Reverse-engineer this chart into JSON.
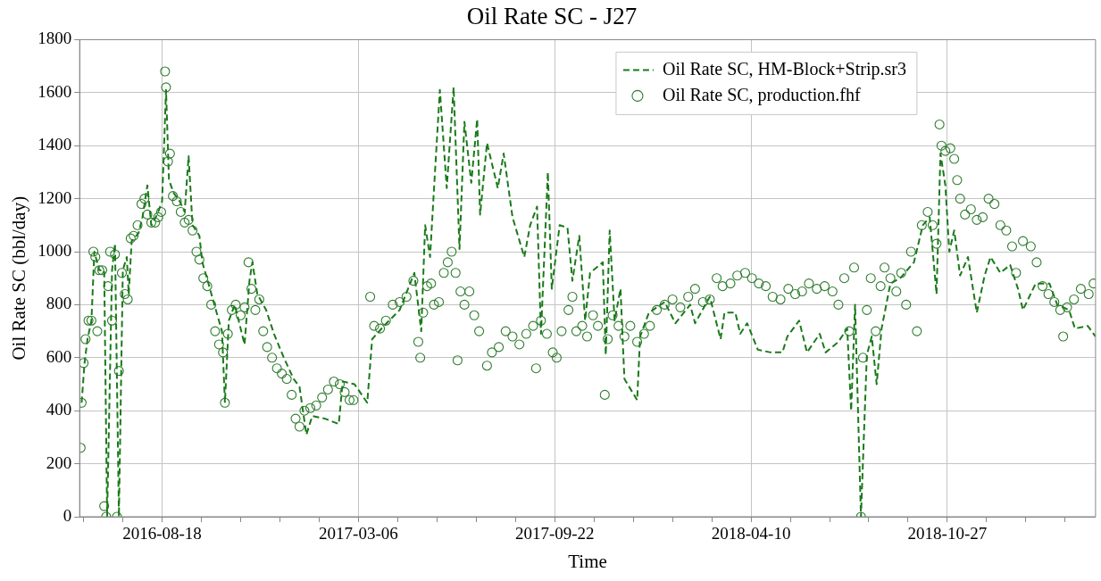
{
  "chart_data": {
    "type": "line",
    "title": "Oil Rate SC - J27",
    "xlabel": "Time",
    "ylabel": "Oil Rate SC (bbl/day)",
    "xlim": [
      "2016-05-26",
      "2019-03-27"
    ],
    "xticks": [
      {
        "value": "2016-05-30",
        "label": null
      },
      {
        "value": "2016-07-09",
        "label": null
      },
      "2016-08-18",
      {
        "value": "2016-09-27",
        "label": null
      },
      {
        "value": "2016-11-06",
        "label": null
      },
      {
        "value": "2016-12-16",
        "label": null
      },
      {
        "value": "2017-01-25",
        "label": null
      },
      "2017-03-06",
      {
        "value": "2017-04-15",
        "label": null
      },
      {
        "value": "2017-05-25",
        "label": null
      },
      {
        "value": "2017-07-04",
        "label": null
      },
      {
        "value": "2017-08-13",
        "label": null
      },
      "2017-09-22",
      {
        "value": "2017-11-01",
        "label": null
      },
      {
        "value": "2017-12-11",
        "label": null
      },
      {
        "value": "2018-01-20",
        "label": null
      },
      {
        "value": "2018-03-01",
        "label": null
      },
      "2018-04-10",
      {
        "value": "2018-05-20",
        "label": null
      },
      {
        "value": "2018-06-29",
        "label": null
      },
      {
        "value": "2018-08-08",
        "label": null
      },
      {
        "value": "2018-09-17",
        "label": null
      },
      "2018-10-27",
      {
        "value": "2018-12-06",
        "label": null
      },
      {
        "value": "2019-01-15",
        "label": null
      },
      {
        "value": "2019-02-24",
        "label": null
      }
    ],
    "ylim": [
      0,
      1800
    ],
    "yticks": [
      0,
      200,
      400,
      600,
      800,
      1000,
      1200,
      1400,
      1600,
      1800
    ],
    "grid": true,
    "legend": "top right",
    "series": [
      {
        "name": "Oil Rate SC, HM-Block+Strip.sr3",
        "type": "line",
        "line_style": "dashed",
        "marker": "none",
        "color": "#1a7a1a",
        "x": [
          "2016-05-28",
          "2016-05-31",
          "2016-06-03",
          "2016-06-07",
          "2016-06-10",
          "2016-06-15",
          "2016-06-20",
          "2016-06-23",
          "2016-06-28",
          "2016-07-01",
          "2016-07-05",
          "2016-07-09",
          "2016-07-13",
          "2016-07-15",
          "2016-07-18",
          "2016-07-25",
          "2016-07-29",
          "2016-08-03",
          "2016-08-07",
          "2016-08-13",
          "2016-08-18",
          "2016-08-22",
          "2016-08-25",
          "2016-08-30",
          "2016-09-05",
          "2016-09-10",
          "2016-09-14",
          "2016-09-18",
          "2016-09-25",
          "2016-09-28",
          "2016-10-05",
          "2016-10-11",
          "2016-10-18",
          "2016-10-21",
          "2016-10-25",
          "2016-10-31",
          "2016-11-10",
          "2016-11-15",
          "2016-11-18",
          "2016-11-23",
          "2016-12-02",
          "2016-12-10",
          "2016-12-20",
          "2016-12-30",
          "2017-01-05",
          "2017-01-12",
          "2017-01-18",
          "2017-01-31",
          "2017-02-14",
          "2017-02-18",
          "2017-03-02",
          "2017-03-15",
          "2017-03-20",
          "2017-04-01",
          "2017-04-17",
          "2017-05-02",
          "2017-05-09",
          "2017-05-13",
          "2017-05-18",
          "2017-05-23",
          "2017-05-28",
          "2017-06-04",
          "2017-06-11",
          "2017-06-17",
          "2017-06-22",
          "2017-06-29",
          "2017-07-05",
          "2017-07-08",
          "2017-07-15",
          "2017-07-26",
          "2017-08-01",
          "2017-08-10",
          "2017-08-22",
          "2017-08-28",
          "2017-09-04",
          "2017-09-08",
          "2017-09-15",
          "2017-09-19",
          "2017-09-27",
          "2017-10-05",
          "2017-10-10",
          "2017-10-17",
          "2017-10-23",
          "2017-10-28",
          "2017-11-10",
          "2017-11-13",
          "2017-11-17",
          "2017-11-22",
          "2017-11-28",
          "2017-12-02",
          "2017-12-15",
          "2017-12-18",
          "2017-12-27",
          "2018-01-12",
          "2018-01-23",
          "2018-02-07",
          "2018-02-12",
          "2018-02-27",
          "2018-03-10",
          "2018-03-14",
          "2018-03-25",
          "2018-03-30",
          "2018-04-06",
          "2018-04-17",
          "2018-04-30",
          "2018-05-12",
          "2018-05-17",
          "2018-05-29",
          "2018-06-06",
          "2018-06-19",
          "2018-06-25",
          "2018-07-08",
          "2018-07-17",
          "2018-07-21",
          "2018-07-25",
          "2018-07-31",
          "2018-08-06",
          "2018-08-11",
          "2018-08-16",
          "2018-08-21",
          "2018-08-30",
          "2018-09-09",
          "2018-09-23",
          "2018-10-02",
          "2018-10-09",
          "2018-10-16",
          "2018-10-20",
          "2018-10-25",
          "2018-10-29",
          "2018-11-03",
          "2018-11-09",
          "2018-11-17",
          "2018-11-26",
          "2018-12-04",
          "2018-12-10",
          "2018-12-20",
          "2018-12-30",
          "2019-01-07",
          "2019-01-12",
          "2019-01-25",
          "2019-02-08",
          "2019-02-16",
          "2019-02-28",
          "2019-03-06",
          "2019-03-19",
          "2019-03-27"
        ],
        "values": [
          430,
          580,
          670,
          740,
          1000,
          930,
          930,
          0,
          930,
          1030,
          0,
          930,
          980,
          840,
          1040,
          1070,
          1130,
          1250,
          1100,
          1140,
          1190,
          1610,
          1270,
          1220,
          1190,
          1150,
          1360,
          1100,
          1060,
          960,
          870,
          790,
          700,
          430,
          740,
          800,
          650,
          890,
          960,
          840,
          780,
          690,
          600,
          520,
          490,
          310,
          380,
          370,
          350,
          510,
          500,
          430,
          670,
          720,
          780,
          920,
          700,
          1100,
          980,
          1300,
          1610,
          1240,
          1620,
          1010,
          1490,
          1260,
          1500,
          1140,
          1410,
          1240,
          1370,
          1130,
          980,
          1100,
          1170,
          690,
          1300,
          860,
          1100,
          1090,
          890,
          1060,
          740,
          920,
          960,
          610,
          1080,
          740,
          860,
          520,
          440,
          680,
          770,
          810,
          730,
          800,
          730,
          830,
          670,
          770,
          770,
          690,
          730,
          630,
          620,
          620,
          680,
          740,
          620,
          690,
          620,
          660,
          710,
          400,
          800,
          0,
          610,
          680,
          500,
          710,
          880,
          900,
          960,
          1100,
          1130,
          840,
          1370,
          1250,
          1000,
          1080,
          910,
          980,
          770,
          910,
          980,
          920,
          950,
          860,
          780,
          880,
          880,
          800,
          780,
          710,
          720,
          680
        ]
      },
      {
        "name": "Oil Rate SC, production.fhf",
        "type": "scatter",
        "marker": "circle",
        "color": "#2e7d2e",
        "x": [
          "2016-05-27",
          "2016-05-28",
          "2016-05-30",
          "2016-06-01",
          "2016-06-04",
          "2016-06-07",
          "2016-06-09",
          "2016-06-11",
          "2016-06-13",
          "2016-06-15",
          "2016-06-18",
          "2016-06-20",
          "2016-06-22",
          "2016-06-24",
          "2016-06-26",
          "2016-06-28",
          "2016-07-01",
          "2016-07-03",
          "2016-07-05",
          "2016-07-08",
          "2016-07-11",
          "2016-07-14",
          "2016-07-17",
          "2016-07-20",
          "2016-07-24",
          "2016-07-28",
          "2016-07-31",
          "2016-08-03",
          "2016-08-07",
          "2016-08-11",
          "2016-08-14",
          "2016-08-17",
          "2016-08-21",
          "2016-08-22",
          "2016-08-24",
          "2016-08-26",
          "2016-08-29",
          "2016-09-02",
          "2016-09-06",
          "2016-09-10",
          "2016-09-14",
          "2016-09-18",
          "2016-09-22",
          "2016-09-25",
          "2016-09-29",
          "2016-10-03",
          "2016-10-07",
          "2016-10-11",
          "2016-10-15",
          "2016-10-19",
          "2016-10-21",
          "2016-10-24",
          "2016-10-28",
          "2016-11-01",
          "2016-11-06",
          "2016-11-10",
          "2016-11-14",
          "2016-11-17",
          "2016-11-21",
          "2016-11-25",
          "2016-11-29",
          "2016-12-03",
          "2016-12-08",
          "2016-12-13",
          "2016-12-18",
          "2016-12-23",
          "2016-12-28",
          "2017-01-01",
          "2017-01-05",
          "2017-01-10",
          "2017-01-16",
          "2017-01-22",
          "2017-01-28",
          "2017-02-03",
          "2017-02-09",
          "2017-02-15",
          "2017-02-20",
          "2017-02-25",
          "2017-03-01",
          "2017-03-18",
          "2017-03-22",
          "2017-03-28",
          "2017-04-03",
          "2017-04-10",
          "2017-04-17",
          "2017-04-24",
          "2017-05-01",
          "2017-05-06",
          "2017-05-08",
          "2017-05-11",
          "2017-05-15",
          "2017-05-19",
          "2017-05-22",
          "2017-05-27",
          "2017-06-01",
          "2017-06-05",
          "2017-06-09",
          "2017-06-13",
          "2017-06-15",
          "2017-06-18",
          "2017-06-22",
          "2017-06-27",
          "2017-07-02",
          "2017-07-07",
          "2017-07-15",
          "2017-07-20",
          "2017-07-27",
          "2017-08-03",
          "2017-08-10",
          "2017-08-17",
          "2017-08-24",
          "2017-08-31",
          "2017-09-03",
          "2017-09-08",
          "2017-09-14",
          "2017-09-20",
          "2017-09-24",
          "2017-09-29",
          "2017-10-06",
          "2017-10-10",
          "2017-10-14",
          "2017-10-20",
          "2017-10-25",
          "2017-10-31",
          "2017-11-05",
          "2017-11-12",
          "2017-11-15",
          "2017-11-20",
          "2017-11-26",
          "2017-12-02",
          "2017-12-08",
          "2017-12-15",
          "2017-12-22",
          "2017-12-28",
          "2018-01-04",
          "2018-01-12",
          "2018-01-20",
          "2018-01-28",
          "2018-02-05",
          "2018-02-12",
          "2018-02-20",
          "2018-02-27",
          "2018-03-06",
          "2018-03-12",
          "2018-03-20",
          "2018-03-27",
          "2018-04-04",
          "2018-04-11",
          "2018-04-18",
          "2018-04-25",
          "2018-05-02",
          "2018-05-10",
          "2018-05-18",
          "2018-05-25",
          "2018-06-01",
          "2018-06-08",
          "2018-06-16",
          "2018-06-24",
          "2018-07-02",
          "2018-07-08",
          "2018-07-14",
          "2018-07-19",
          "2018-07-24",
          "2018-07-31",
          "2018-08-02",
          "2018-08-06",
          "2018-08-10",
          "2018-08-15",
          "2018-08-20",
          "2018-08-24",
          "2018-08-30",
          "2018-09-05",
          "2018-09-10",
          "2018-09-15",
          "2018-09-20",
          "2018-09-26",
          "2018-10-01",
          "2018-10-07",
          "2018-10-12",
          "2018-10-16",
          "2018-10-19",
          "2018-10-21",
          "2018-10-25",
          "2018-10-30",
          "2018-11-03",
          "2018-11-06",
          "2018-11-09",
          "2018-11-14",
          "2018-11-20",
          "2018-11-26",
          "2018-12-02",
          "2018-12-08",
          "2018-12-14",
          "2018-12-20",
          "2018-12-26",
          "2019-01-01",
          "2019-01-05",
          "2019-01-12",
          "2019-01-20",
          "2019-01-26",
          "2019-02-01",
          "2019-02-07",
          "2019-02-13",
          "2019-02-19",
          "2019-02-22",
          "2019-02-26",
          "2019-03-05",
          "2019-03-12",
          "2019-03-20",
          "2019-03-25"
        ],
        "values": [
          260,
          430,
          580,
          670,
          740,
          740,
          1000,
          980,
          700,
          930,
          930,
          40,
          0,
          870,
          1000,
          740,
          990,
          0,
          550,
          920,
          840,
          820,
          1050,
          1060,
          1100,
          1180,
          1200,
          1140,
          1110,
          1110,
          1130,
          1150,
          1680,
          1620,
          1340,
          1370,
          1210,
          1190,
          1150,
          1110,
          1120,
          1080,
          1000,
          970,
          900,
          870,
          800,
          700,
          650,
          620,
          430,
          690,
          780,
          800,
          760,
          790,
          960,
          860,
          780,
          820,
          700,
          640,
          600,
          560,
          540,
          520,
          460,
          370,
          340,
          400,
          410,
          420,
          450,
          480,
          510,
          500,
          470,
          440,
          440,
          830,
          720,
          710,
          740,
          800,
          810,
          830,
          890,
          660,
          600,
          770,
          870,
          880,
          800,
          810,
          920,
          960,
          1000,
          920,
          590,
          850,
          800,
          850,
          760,
          700,
          570,
          620,
          640,
          700,
          680,
          650,
          690,
          720,
          560,
          740,
          690,
          620,
          600,
          700,
          780,
          830,
          700,
          720,
          680,
          760,
          720,
          460,
          670,
          760,
          720,
          680,
          720,
          660,
          690,
          720,
          780,
          800,
          820,
          790,
          830,
          860,
          810,
          820,
          900,
          870,
          880,
          910,
          920,
          900,
          880,
          870,
          830,
          820,
          860,
          840,
          850,
          880,
          860,
          870,
          850,
          800,
          900,
          700,
          940,
          0,
          600,
          780,
          900,
          700,
          870,
          940,
          900,
          850,
          920,
          800,
          1000,
          700,
          1100,
          1150,
          1100,
          1030,
          1480,
          1400,
          1380,
          1390,
          1350,
          1270,
          1200,
          1140,
          1160,
          1120,
          1130,
          1200,
          1180,
          1100,
          1080,
          1020,
          920,
          1040,
          1020,
          960,
          870,
          840,
          810,
          780,
          680,
          790,
          820,
          860,
          840,
          880
        ]
      }
    ]
  }
}
